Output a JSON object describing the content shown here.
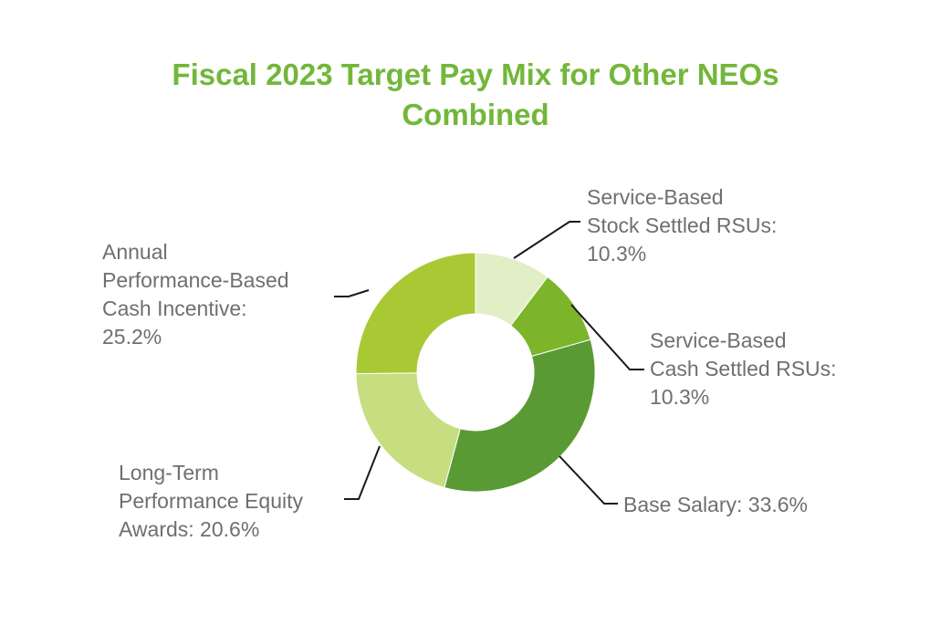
{
  "chart_data": {
    "type": "pie",
    "variant": "donut",
    "title_lines": [
      "Fiscal 2023 Target Pay Mix for Other NEOs",
      "Combined"
    ],
    "legend": "none (callout labels)",
    "slices": [
      {
        "label_lines": [
          "Service-Based",
          "Stock Settled RSUs:",
          "10.3%"
        ],
        "value": 10.3,
        "color": "#e2efc6"
      },
      {
        "label_lines": [
          "Service-Based",
          "Cash Settled RSUs:",
          "10.3%"
        ],
        "value": 10.3,
        "color": "#7cb52a"
      },
      {
        "label_lines": [
          "Base Salary: 33.6%"
        ],
        "value": 33.6,
        "color": "#5a9a34"
      },
      {
        "label_lines": [
          "Long-Term",
          "Performance Equity",
          "Awards: 20.6%"
        ],
        "value": 20.6,
        "color": "#c6de80"
      },
      {
        "label_lines": [
          "Annual",
          "Performance-Based",
          "Cash Incentive:",
          "25.2%"
        ],
        "value": 25.2,
        "color": "#a8c934"
      }
    ],
    "colors": {
      "title": "#72b73a",
      "label_text": "#6f6f6f",
      "leader_line": "#1a1a1a"
    }
  }
}
